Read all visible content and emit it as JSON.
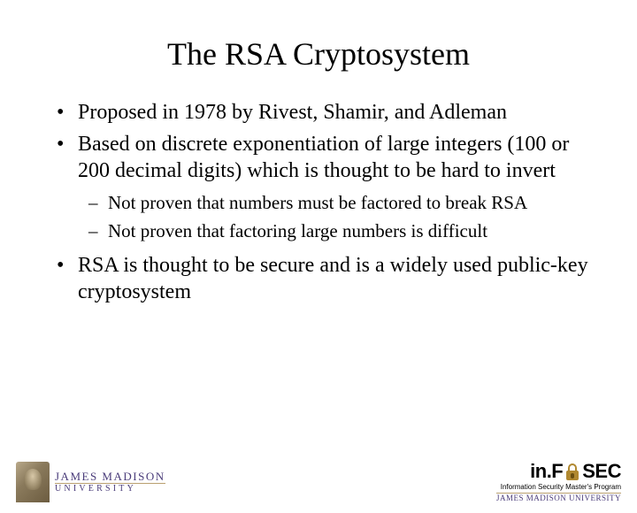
{
  "title": "The RSA Cryptosystem",
  "bullets": {
    "b1": "Proposed in 1978 by Rivest, Shamir, and Adleman",
    "b2": "Based on discrete exponentiation of large integers (100 or 200 decimal digits) which is thought to be hard to invert",
    "b2_sub1": "Not proven that numbers must be factored to break RSA",
    "b2_sub2": "Not proven that factoring large numbers is difficult",
    "b3": "RSA is thought to be secure and is a widely used public-key cryptosystem"
  },
  "footer": {
    "left_top": "JAMES MADISON",
    "left_bottom": "UNIVERSITY",
    "right_brand_pre": "in.F",
    "right_brand_post": "SEC",
    "right_sub1": "Information Security Master's Program",
    "right_sub2": "JAMES MADISON UNIVERSITY"
  },
  "style": {
    "title_fontsize": 36,
    "body_fontsize": 24,
    "sub_fontsize": 21,
    "title_color": "#000000",
    "body_color": "#000000",
    "background_color": "#ffffff",
    "jmu_color": "#4a3c7a",
    "accent_gold": "#b08830"
  }
}
